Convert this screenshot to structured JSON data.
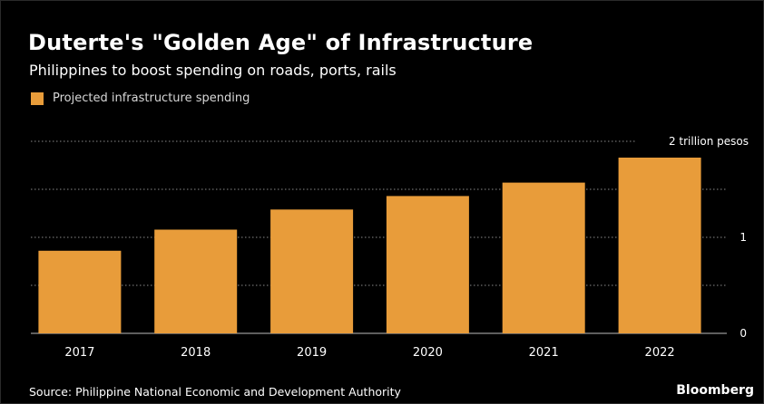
{
  "chart_data": {
    "type": "bar",
    "title": "Duterte's \"Golden Age\" of Infrastructure",
    "subtitle": "Philippines to boost spending on roads, ports, rails",
    "categories": [
      "2017",
      "2018",
      "2019",
      "2020",
      "2021",
      "2022"
    ],
    "series": [
      {
        "name": "Projected infrastructure spending",
        "values": [
          0.86,
          1.08,
          1.29,
          1.43,
          1.57,
          1.83
        ],
        "color": "#e89c3a"
      }
    ],
    "ylim": [
      0,
      2
    ],
    "yticks": [
      {
        "value": 0,
        "label": "0"
      },
      {
        "value": 1,
        "label": "1"
      },
      {
        "value": 2,
        "label": "2 trillion pesos"
      }
    ],
    "minor_gridlines": [
      0.5,
      1.5
    ],
    "grid": true,
    "grid_style": "dotted",
    "legend_position": "top-left",
    "source": "Source: Philippine National Economic and Development Authority",
    "brand": "Bloomberg",
    "colors": {
      "background": "#000000",
      "bar": "#e89c3a",
      "text": "#ffffff",
      "grid": "#8a8a8a"
    }
  }
}
